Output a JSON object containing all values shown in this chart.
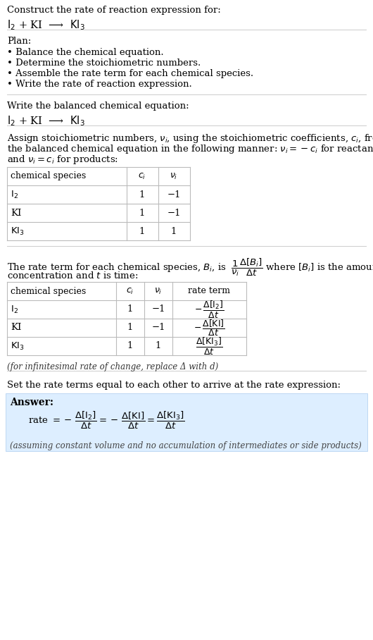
{
  "title_line1": "Construct the rate of reaction expression for:",
  "plan_header": "Plan:",
  "plan_items": [
    "• Balance the chemical equation.",
    "• Determine the stoichiometric numbers.",
    "• Assemble the rate term for each chemical species.",
    "• Write the rate of reaction expression."
  ],
  "section2_header": "Write the balanced chemical equation:",
  "section3_lines": [
    "Assign stoichiometric numbers, $\\nu_i$, using the stoichiometric coefficients, $c_i$, from",
    "the balanced chemical equation in the following manner: $\\nu_i = -c_i$ for reactants",
    "and $\\nu_i = c_i$ for products:"
  ],
  "section4_line1": "The rate term for each chemical species, $B_i$, is $\\;\\dfrac{1}{\\nu_i}\\dfrac{\\Delta[B_i]}{\\Delta t}$ where $[B_i]$ is the amount",
  "section4_line2": "concentration and $t$ is time:",
  "infinitesimal_note": "(for infinitesimal rate of change, replace Δ with d)",
  "section5_header": "Set the rate terms equal to each other to arrive at the rate expression:",
  "answer_label": "Answer:",
  "answer_box_color": "#ddeeff",
  "answer_note": "(assuming constant volume and no accumulation of intermediates or side products)",
  "bg_color": "#ffffff",
  "text_color": "#000000",
  "table_line_color": "#bbbbbb",
  "separator_color": "#cccccc",
  "figwidth": 5.3,
  "figheight": 9.08,
  "dpi": 100
}
